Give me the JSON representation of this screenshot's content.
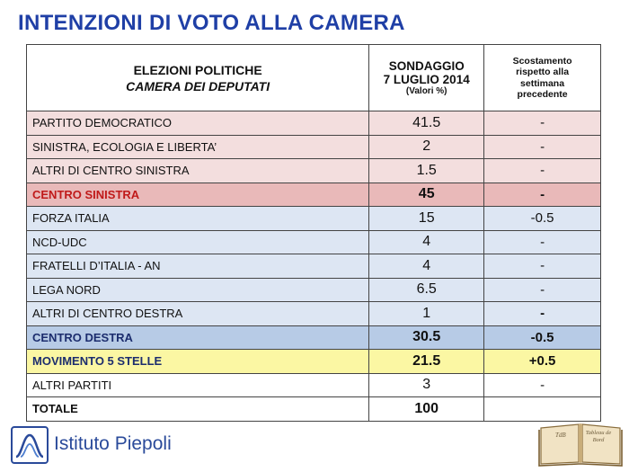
{
  "title": "INTENZIONI DI VOTO ALLA CAMERA",
  "header": {
    "col1_line1": "ELEZIONI POLITICHE",
    "col1_line2": "CAMERA DEI DEPUTATI",
    "col2_line1": "SONDAGGIO",
    "col2_line2": "7 LUGLIO 2014",
    "col2_line3": "(Valori %)",
    "col3_line1": "Scostamento",
    "col3_line2": "rispetto alla",
    "col3_line3": "settimana",
    "col3_line4": "precedente"
  },
  "rows": [
    {
      "name": "PARTITO DEMOCRATICO",
      "value": "41.5",
      "change": "-"
    },
    {
      "name": "SINISTRA, ECOLOGIA E LIBERTA’",
      "value": "2",
      "change": "-"
    },
    {
      "name": "ALTRI DI CENTRO SINISTRA",
      "value": "1.5",
      "change": "-"
    },
    {
      "name": "CENTRO SINISTRA",
      "value": "45",
      "change": "-"
    },
    {
      "name": "FORZA ITALIA",
      "value": "15",
      "change": "-0.5"
    },
    {
      "name": "NCD-UDC",
      "value": "4",
      "change": "-"
    },
    {
      "name": "FRATELLI D’ITALIA - AN",
      "value": "4",
      "change": "-"
    },
    {
      "name": "LEGA NORD",
      "value": "6.5",
      "change": "-"
    },
    {
      "name": "ALTRI DI CENTRO DESTRA",
      "value": "1",
      "change": "-"
    },
    {
      "name": "CENTRO DESTRA",
      "value": "30.5",
      "change": "-0.5"
    },
    {
      "name": "MOVIMENTO 5 STELLE",
      "value": "21.5",
      "change": "+0.5"
    },
    {
      "name": "ALTRI PARTITI",
      "value": "3",
      "change": "-"
    },
    {
      "name": "TOTALE",
      "value": "100",
      "change": ""
    }
  ],
  "colors": {
    "title": "#1f3fa6",
    "left_rows": "#f3dede",
    "left_total": "#e9b9b9",
    "right_rows": "#dde6f3",
    "right_total": "#b7cbe6",
    "m5s": "#fbf7a3"
  },
  "footer": {
    "logo_text": "Istituto Piepoli",
    "book_left": "TdB",
    "book_right": "Tableau de Bord",
    "logo_icon": "piepoli-logo-icon",
    "book_icon": "open-book-icon"
  }
}
